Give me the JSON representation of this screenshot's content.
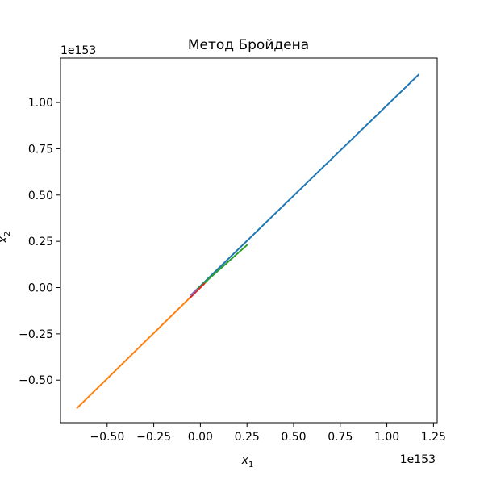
{
  "chart_data": {
    "type": "line",
    "title": "Метод Бройдена",
    "xlabel": "x",
    "xlabel_subscript": "1",
    "ylabel": "x",
    "ylabel_subscript": "2",
    "x_offset_text": "1e153",
    "y_offset_text": "1e153",
    "xlim": [
      -0.75,
      1.27
    ],
    "ylim": [
      -0.73,
      1.24
    ],
    "x_ticks": [
      -0.5,
      -0.25,
      0.0,
      0.25,
      0.5,
      0.75,
      1.0,
      1.25
    ],
    "x_tick_labels": [
      "−0.50",
      "−0.25",
      "0.00",
      "0.25",
      "0.50",
      "0.75",
      "1.00",
      "1.25"
    ],
    "y_ticks": [
      -0.5,
      -0.25,
      0.0,
      0.25,
      0.5,
      0.75,
      1.0
    ],
    "y_tick_labels": [
      "−0.50",
      "−0.25",
      "0.00",
      "0.25",
      "0.50",
      "0.75",
      "1.00"
    ],
    "grid": false,
    "series": [
      {
        "color": "#1f77b4",
        "x": [
          -0.05,
          1.17
        ],
        "y": [
          -0.04,
          1.15
        ]
      },
      {
        "color": "#ff7f0e",
        "x": [
          0.03,
          -0.66
        ],
        "y": [
          0.03,
          -0.65
        ]
      },
      {
        "color": "#2ca02c",
        "x": [
          -0.04,
          0.25
        ],
        "y": [
          -0.03,
          0.23
        ]
      },
      {
        "color": "#d62728",
        "x": [
          -0.055,
          0.02
        ],
        "y": [
          -0.055,
          0.02
        ]
      },
      {
        "color": "#9467bd",
        "x": [
          -0.05,
          -0.02
        ],
        "y": [
          -0.04,
          -0.01
        ]
      }
    ]
  }
}
